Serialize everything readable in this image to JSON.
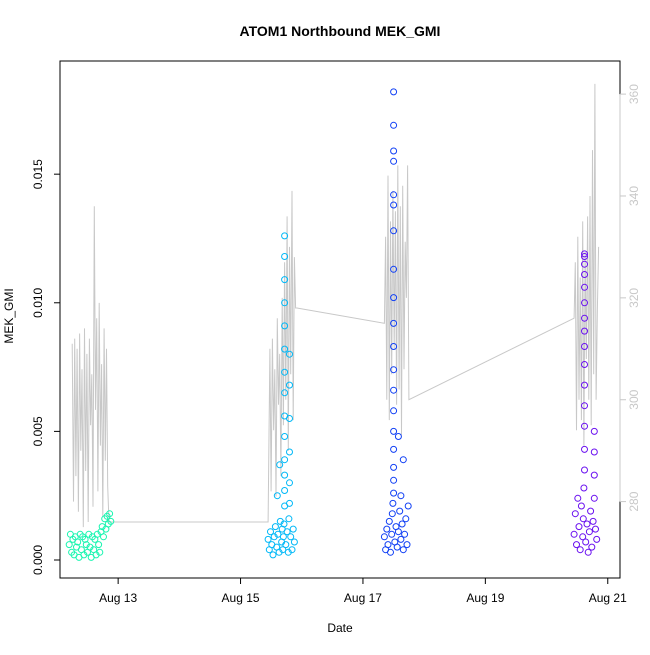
{
  "chart_data": {
    "type": "scatter",
    "title": "ATOM1 Northbound MEK_GMI",
    "xlabel": "Date",
    "ylabel": "MEK_GMI",
    "y2label": "",
    "x_ticks": [
      {
        "day": 13,
        "label": "Aug 13"
      },
      {
        "day": 15,
        "label": "Aug 15"
      },
      {
        "day": 17,
        "label": "Aug 17"
      },
      {
        "day": 19,
        "label": "Aug 19"
      },
      {
        "day": 21,
        "label": "Aug 21"
      }
    ],
    "y_ticks": [
      {
        "value": 0.0,
        "label": "0.000"
      },
      {
        "value": 0.005,
        "label": "0.005"
      },
      {
        "value": 0.01,
        "label": "0.010"
      },
      {
        "value": 0.015,
        "label": "0.015"
      }
    ],
    "y2_ticks": [
      {
        "value": 280,
        "label": "280"
      },
      {
        "value": 300,
        "label": "300"
      },
      {
        "value": 320,
        "label": "320"
      },
      {
        "value": 340,
        "label": "340"
      },
      {
        "value": 360,
        "label": "360"
      }
    ],
    "xlim": [
      12.05,
      21.2
    ],
    "ylim": [
      -0.0007,
      0.0194
    ],
    "y2lim": [
      265.0,
      366.5
    ],
    "grid": false,
    "legend": "none",
    "colors": {
      "line": "#c8c8c8",
      "y2_axis": "#c8c8c8",
      "axis": "#000000"
    },
    "series": [
      {
        "color": "#19f5b0",
        "x": [
          12.2,
          12.22,
          12.24,
          12.26,
          12.28,
          12.3,
          12.32,
          12.34,
          12.36,
          12.38,
          12.4,
          12.42,
          12.44,
          12.46,
          12.48,
          12.5,
          12.52,
          12.54,
          12.56,
          12.58,
          12.6,
          12.62,
          12.64,
          12.66,
          12.68,
          12.7,
          12.72,
          12.74,
          12.76,
          12.78,
          12.8,
          12.82,
          12.84,
          12.86,
          12.88
        ],
        "y": [
          0.0006,
          0.001,
          0.0003,
          0.0008,
          0.0002,
          0.0009,
          0.0005,
          0.0007,
          0.0001,
          0.001,
          0.0004,
          0.0009,
          0.0002,
          0.0008,
          0.0006,
          0.0003,
          0.001,
          0.0005,
          0.0001,
          0.0009,
          0.0004,
          0.0008,
          0.0002,
          0.001,
          0.0006,
          0.0003,
          0.0011,
          0.0013,
          0.0009,
          0.0016,
          0.0012,
          0.0017,
          0.0014,
          0.0018,
          0.0015
        ]
      },
      {
        "color": "#00b8f7",
        "x": [
          15.45,
          15.47,
          15.49,
          15.51,
          15.53,
          15.55,
          15.57,
          15.59,
          15.61,
          15.63,
          15.65,
          15.67,
          15.68,
          15.69,
          15.7,
          15.71,
          15.72,
          15.72,
          15.72,
          15.72,
          15.72,
          15.72,
          15.72,
          15.72,
          15.72,
          15.72,
          15.72,
          15.72,
          15.72,
          15.72,
          15.74,
          15.76,
          15.78,
          15.79,
          15.8,
          15.8,
          15.8,
          15.8,
          15.8,
          15.8,
          15.82,
          15.84,
          15.86,
          15.88,
          15.6,
          15.64
        ],
        "y": [
          0.0008,
          0.0004,
          0.0011,
          0.0006,
          0.0002,
          0.0009,
          0.0013,
          0.0005,
          0.001,
          0.0003,
          0.0015,
          0.0007,
          0.0012,
          0.0004,
          0.0009,
          0.0014,
          0.0021,
          0.0027,
          0.0033,
          0.0039,
          0.0048,
          0.0056,
          0.0065,
          0.0073,
          0.0082,
          0.0091,
          0.01,
          0.0109,
          0.0118,
          0.0126,
          0.0006,
          0.0011,
          0.0003,
          0.0016,
          0.0022,
          0.003,
          0.0042,
          0.0055,
          0.0068,
          0.008,
          0.0009,
          0.0004,
          0.0012,
          0.0007,
          0.0025,
          0.0037
        ]
      },
      {
        "color": "#1140f5",
        "x": [
          17.35,
          17.37,
          17.39,
          17.41,
          17.43,
          17.45,
          17.47,
          17.48,
          17.49,
          17.5,
          17.5,
          17.5,
          17.5,
          17.5,
          17.5,
          17.5,
          17.5,
          17.5,
          17.5,
          17.5,
          17.5,
          17.5,
          17.5,
          17.5,
          17.5,
          17.5,
          17.5,
          17.5,
          17.52,
          17.54,
          17.56,
          17.58,
          17.6,
          17.62,
          17.64,
          17.66,
          17.68,
          17.7,
          17.72,
          17.74,
          17.62,
          17.66,
          17.58
        ],
        "y": [
          0.0009,
          0.0004,
          0.0012,
          0.0006,
          0.0015,
          0.0003,
          0.001,
          0.0018,
          0.0022,
          0.0026,
          0.0031,
          0.0036,
          0.0043,
          0.005,
          0.0058,
          0.0066,
          0.0074,
          0.0083,
          0.0092,
          0.0102,
          0.0113,
          0.0128,
          0.0138,
          0.0142,
          0.0155,
          0.0159,
          0.0169,
          0.0182,
          0.0007,
          0.0013,
          0.0005,
          0.0011,
          0.0019,
          0.0008,
          0.0014,
          0.0004,
          0.001,
          0.0016,
          0.0006,
          0.0021,
          0.0025,
          0.0039,
          0.0048
        ]
      },
      {
        "color": "#6a10f0",
        "x": [
          20.45,
          20.47,
          20.49,
          20.51,
          20.53,
          20.55,
          20.57,
          20.59,
          20.6,
          20.61,
          20.62,
          20.62,
          20.62,
          20.62,
          20.62,
          20.62,
          20.62,
          20.62,
          20.62,
          20.62,
          20.62,
          20.62,
          20.62,
          20.62,
          20.62,
          20.64,
          20.66,
          20.68,
          20.7,
          20.72,
          20.74,
          20.76,
          20.78,
          20.78,
          20.78,
          20.78,
          20.8,
          20.82
        ],
        "y": [
          0.001,
          0.0018,
          0.0006,
          0.0024,
          0.0013,
          0.0004,
          0.0021,
          0.0009,
          0.0016,
          0.0028,
          0.0035,
          0.0043,
          0.0052,
          0.006,
          0.0068,
          0.0076,
          0.0083,
          0.0089,
          0.0094,
          0.01,
          0.0106,
          0.0111,
          0.0115,
          0.0119,
          0.0118,
          0.0007,
          0.0014,
          0.0003,
          0.0011,
          0.0019,
          0.0005,
          0.0015,
          0.0024,
          0.0033,
          0.0042,
          0.005,
          0.0012,
          0.0008
        ]
      }
    ],
    "line_series": {
      "color": "#c8c8c8",
      "axis": "y2",
      "x": [
        12.25,
        12.27,
        12.29,
        12.31,
        12.33,
        12.35,
        12.37,
        12.39,
        12.41,
        12.43,
        12.45,
        12.47,
        12.49,
        12.51,
        12.53,
        12.55,
        12.57,
        12.59,
        12.61,
        12.63,
        12.65,
        12.67,
        12.69,
        12.71,
        12.73,
        12.75,
        12.77,
        12.79,
        12.81,
        12.83,
        12.85,
        15.45,
        15.48,
        15.5,
        15.52,
        15.54,
        15.56,
        15.58,
        15.6,
        15.62,
        15.64,
        15.66,
        15.68,
        15.7,
        15.72,
        15.74,
        15.76,
        15.78,
        15.8,
        15.82,
        15.84,
        15.86,
        15.88,
        15.9,
        15.92,
        17.35,
        17.37,
        17.39,
        17.41,
        17.43,
        17.45,
        17.47,
        17.49,
        17.51,
        17.53,
        17.55,
        17.57,
        17.59,
        17.61,
        17.63,
        17.65,
        17.67,
        17.69,
        17.71,
        17.73,
        17.75,
        20.45,
        20.47,
        20.49,
        20.51,
        20.53,
        20.55,
        20.57,
        20.59,
        20.61,
        20.63,
        20.65,
        20.67,
        20.69,
        20.71,
        20.73,
        20.75,
        20.77,
        20.79,
        20.81,
        20.83,
        20.85
      ],
      "y": [
        311,
        280,
        312,
        285,
        310,
        278,
        313,
        290,
        306,
        275,
        314,
        286,
        309,
        276,
        312,
        295,
        305,
        279,
        338,
        298,
        316,
        282,
        319,
        291,
        307,
        277,
        314,
        288,
        310,
        283,
        276,
        276,
        310,
        282,
        312,
        294,
        306,
        281,
        316,
        299,
        309,
        285,
        320,
        295,
        327,
        300,
        336,
        290,
        330,
        305,
        341,
        296,
        328,
        318,
        318,
        315,
        332,
        300,
        344,
        296,
        335,
        305,
        341,
        310,
        337,
        299,
        346,
        302,
        338,
        293,
        342,
        306,
        331,
        320,
        346,
        300,
        316,
        327,
        294,
        332,
        300,
        324,
        296,
        335,
        291,
        329,
        308,
        336,
        300,
        340,
        295,
        349,
        305,
        362,
        300,
        318,
        330
      ]
    }
  }
}
